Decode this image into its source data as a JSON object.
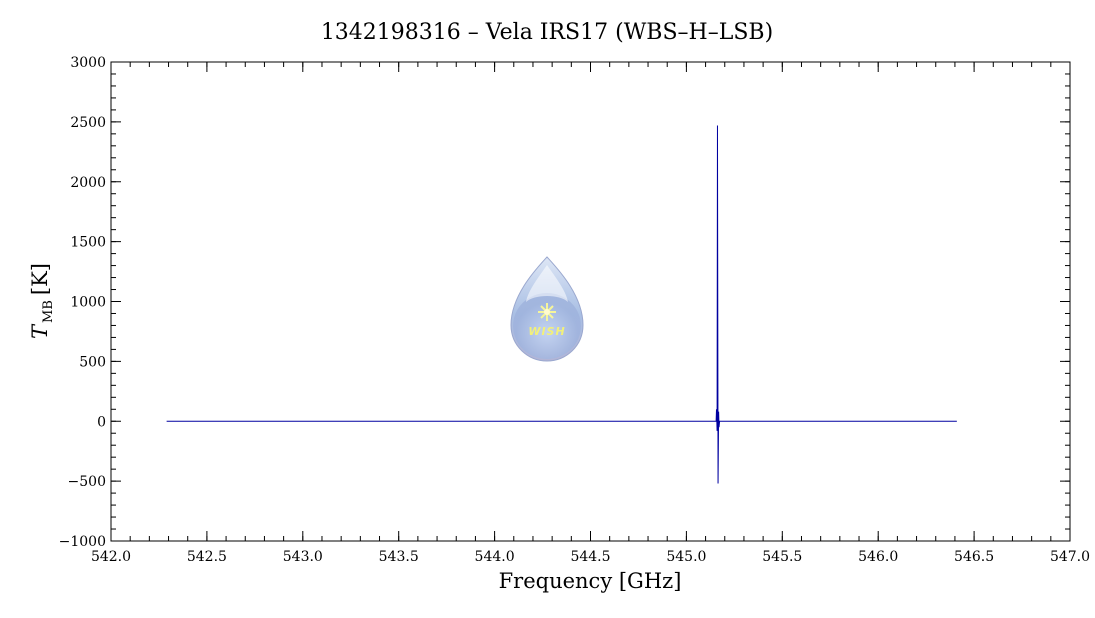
{
  "chart_data": {
    "type": "line",
    "title": "1342198316 – Vela IRS17 (WBS–H–LSB)",
    "xlabel": "Frequency [GHz]",
    "ylabel_main": "T",
    "ylabel_sub": "MB",
    "ylabel_unit": "[K]",
    "xlim": [
      542.0,
      547.0
    ],
    "ylim": [
      -1000,
      3000
    ],
    "x_major_ticks": [
      542.0,
      542.5,
      543.0,
      543.5,
      544.0,
      544.5,
      545.0,
      545.5,
      546.0,
      546.5,
      547.0
    ],
    "x_tick_labels": [
      "542.0",
      "542.5",
      "543.0",
      "543.5",
      "544.0",
      "544.5",
      "545.0",
      "545.5",
      "546.0",
      "546.5",
      "547.0"
    ],
    "y_major_ticks": [
      -1000,
      -500,
      0,
      500,
      1000,
      1500,
      2000,
      2500,
      3000
    ],
    "y_tick_labels": [
      "−1000",
      "−500",
      "0",
      "500",
      "1000",
      "1500",
      "2000",
      "2500",
      "3000"
    ],
    "grid": false,
    "series": [
      {
        "x": [
          542.29,
          545.155,
          545.157,
          545.16,
          545.162,
          545.165,
          545.168,
          545.17,
          545.173,
          546.41
        ],
        "y": [
          0,
          0,
          100,
          -80,
          2470,
          -520,
          80,
          -50,
          0,
          0
        ]
      }
    ],
    "logo_text": "WISH",
    "series_color": "#0000a0"
  }
}
